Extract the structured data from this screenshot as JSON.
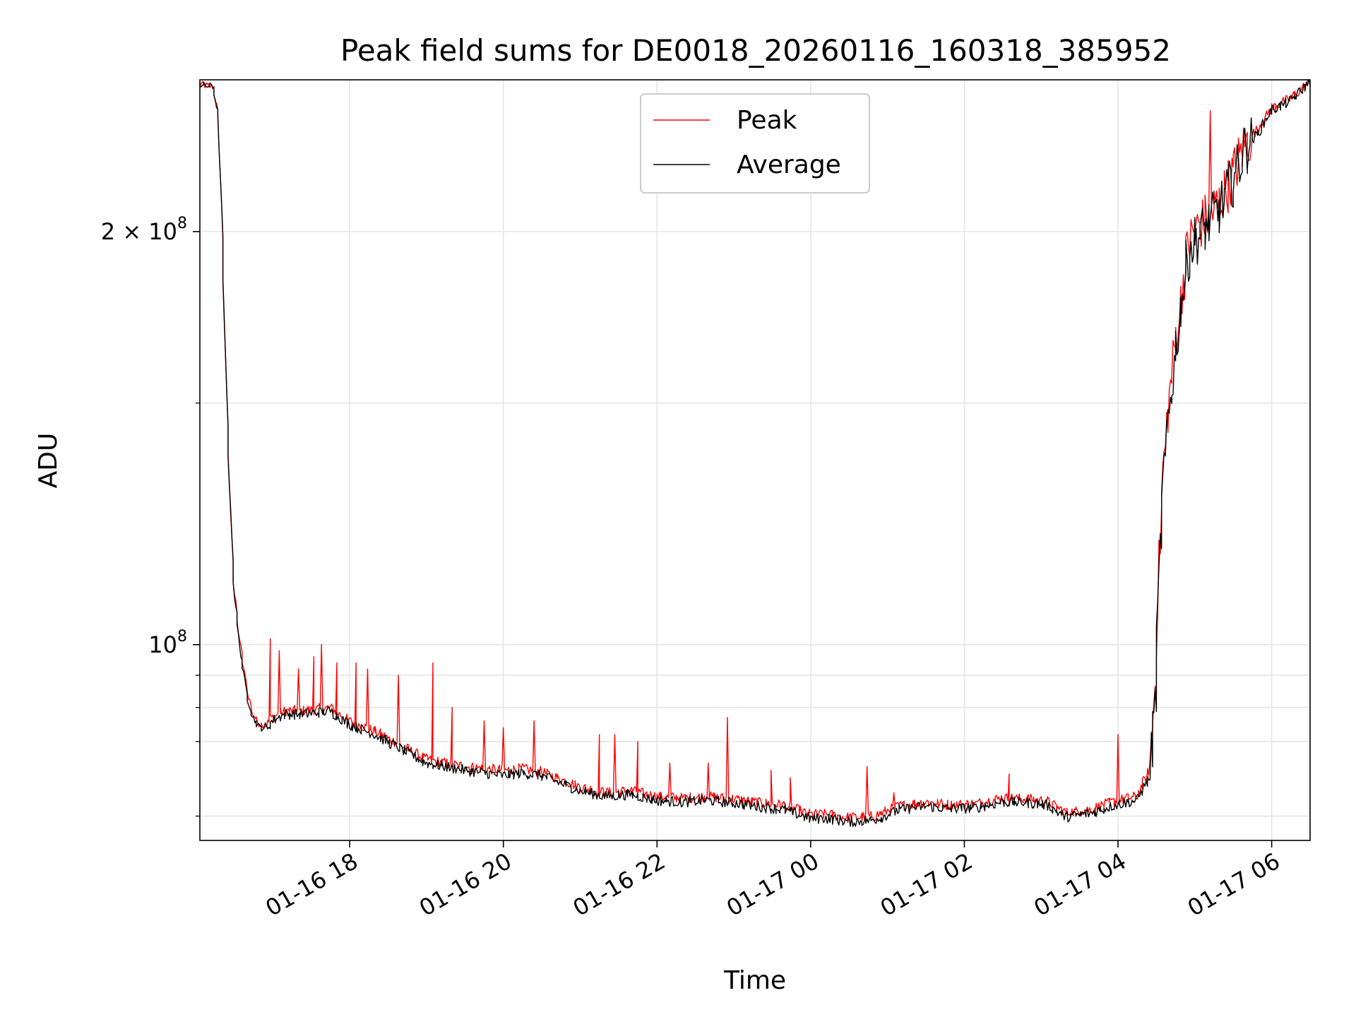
{
  "chart_data": {
    "type": "line",
    "title": "Peak field sums for DE0018_20260116_160318_385952",
    "xlabel": "Time",
    "ylabel": "ADU",
    "yscale": "log",
    "grid": true,
    "legend_position": "top-center",
    "xlim": [
      "2026-01-16 16:03",
      "2026-01-17 06:30"
    ],
    "ylim": [
      72000000,
      258000000
    ],
    "x_ticks": [
      {
        "value": "2026-01-16 18:00",
        "label": "01-16 18"
      },
      {
        "value": "2026-01-16 20:00",
        "label": "01-16 20"
      },
      {
        "value": "2026-01-16 22:00",
        "label": "01-16 22"
      },
      {
        "value": "2026-01-17 00:00",
        "label": "01-17 00"
      },
      {
        "value": "2026-01-17 02:00",
        "label": "01-17 02"
      },
      {
        "value": "2026-01-17 04:00",
        "label": "01-17 04"
      },
      {
        "value": "2026-01-17 06:00",
        "label": "01-17 06"
      }
    ],
    "y_major_ticks": [
      {
        "value": 100000000,
        "label": "10",
        "exp": "8",
        "prefix": ""
      },
      {
        "value": 200000000,
        "label": "2 × 10",
        "exp": "8",
        "prefix": ""
      }
    ],
    "y_minor_ticks": [
      75000000,
      85000000,
      90000000,
      95000000,
      150000000
    ],
    "series": [
      {
        "name": "Peak",
        "color": "#ff0000",
        "x": [
          "2026-01-16 16:03",
          "2026-01-16 16:14",
          "2026-01-16 16:18",
          "2026-01-16 16:21",
          "2026-01-16 16:24",
          "2026-01-16 16:27",
          "2026-01-16 16:30",
          "2026-01-16 16:35",
          "2026-01-16 16:40",
          "2026-01-16 16:45",
          "2026-01-16 16:50",
          "2026-01-16 16:56",
          "2026-01-16 17:00",
          "2026-01-16 17:10",
          "2026-01-16 17:25",
          "2026-01-16 17:45",
          "2026-01-16 18:00",
          "2026-01-16 18:20",
          "2026-01-16 18:40",
          "2026-01-16 19:00",
          "2026-01-16 19:30",
          "2026-01-16 20:00",
          "2026-01-16 20:15",
          "2026-01-16 20:30",
          "2026-01-16 20:45",
          "2026-01-16 21:00",
          "2026-01-16 21:20",
          "2026-01-16 21:40",
          "2026-01-16 22:00",
          "2026-01-16 22:20",
          "2026-01-16 22:40",
          "2026-01-16 23:00",
          "2026-01-16 23:20",
          "2026-01-16 23:40",
          "2026-01-17 00:00",
          "2026-01-17 00:15",
          "2026-01-17 00:30",
          "2026-01-17 00:50",
          "2026-01-17 01:10",
          "2026-01-17 01:30",
          "2026-01-17 01:50",
          "2026-01-17 02:10",
          "2026-01-17 02:30",
          "2026-01-17 02:50",
          "2026-01-17 03:05",
          "2026-01-17 03:20",
          "2026-01-17 03:40",
          "2026-01-17 04:00",
          "2026-01-17 04:15",
          "2026-01-17 04:25",
          "2026-01-17 04:30",
          "2026-01-17 04:33",
          "2026-01-17 04:36",
          "2026-01-17 04:40",
          "2026-01-17 04:45",
          "2026-01-17 04:50",
          "2026-01-17 04:55",
          "2026-01-17 05:00",
          "2026-01-17 05:10",
          "2026-01-17 05:20",
          "2026-01-17 05:30",
          "2026-01-17 05:40",
          "2026-01-17 05:50",
          "2026-01-17 06:00",
          "2026-01-17 06:15",
          "2026-01-17 06:30"
        ],
        "y": [
          256000000,
          255000000,
          242000000,
          200000000,
          155000000,
          128000000,
          110000000,
          100000000,
          93000000,
          89000000,
          87500000,
          87500000,
          88500000,
          89500000,
          89500000,
          90000000,
          88000000,
          86500000,
          84500000,
          82500000,
          81500000,
          81000000,
          81200000,
          80800000,
          79800000,
          78800000,
          78000000,
          78300000,
          77500000,
          77300000,
          77500000,
          77200000,
          76700000,
          76400000,
          75200000,
          75200000,
          74800000,
          75000000,
          76300000,
          76800000,
          76400000,
          76600000,
          77300000,
          77200000,
          76900000,
          75400000,
          75900000,
          77000000,
          77500000,
          81000000,
          95000000,
          118000000,
          135000000,
          150000000,
          165000000,
          180000000,
          195000000,
          200000000,
          205000000,
          210000000,
          220000000,
          232000000,
          238000000,
          246000000,
          250000000,
          257000000
        ],
        "spikes": [
          {
            "x": "2026-01-16 16:58",
            "y": 101000000
          },
          {
            "x": "2026-01-16 17:05",
            "y": 99000000
          },
          {
            "x": "2026-01-16 17:20",
            "y": 96000000
          },
          {
            "x": "2026-01-16 17:32",
            "y": 98000000
          },
          {
            "x": "2026-01-16 17:38",
            "y": 100000000
          },
          {
            "x": "2026-01-16 17:50",
            "y": 97000000
          },
          {
            "x": "2026-01-16 18:05",
            "y": 97000000
          },
          {
            "x": "2026-01-16 18:15",
            "y": 96000000
          },
          {
            "x": "2026-01-16 18:38",
            "y": 95000000
          },
          {
            "x": "2026-01-16 19:05",
            "y": 97000000
          },
          {
            "x": "2026-01-16 19:20",
            "y": 90000000
          },
          {
            "x": "2026-01-16 19:45",
            "y": 88000000
          },
          {
            "x": "2026-01-16 20:00",
            "y": 87000000
          },
          {
            "x": "2026-01-16 20:25",
            "y": 88000000
          },
          {
            "x": "2026-01-16 21:15",
            "y": 86000000
          },
          {
            "x": "2026-01-16 21:28",
            "y": 86000000
          },
          {
            "x": "2026-01-16 21:45",
            "y": 85000000
          },
          {
            "x": "2026-01-16 22:10",
            "y": 82000000
          },
          {
            "x": "2026-01-16 22:40",
            "y": 82000000
          },
          {
            "x": "2026-01-16 22:55",
            "y": 88500000
          },
          {
            "x": "2026-01-16 23:30",
            "y": 81000000
          },
          {
            "x": "2026-01-16 23:45",
            "y": 80000000
          },
          {
            "x": "2026-01-17 00:45",
            "y": 81500000
          },
          {
            "x": "2026-01-17 01:05",
            "y": 78000000
          },
          {
            "x": "2026-01-17 02:35",
            "y": 80500000
          },
          {
            "x": "2026-01-17 04:00",
            "y": 86000000
          },
          {
            "x": "2026-01-17 05:13",
            "y": 245000000
          }
        ]
      },
      {
        "name": "Average",
        "color": "#000000",
        "x": [
          "2026-01-16 16:03",
          "2026-01-16 16:14",
          "2026-01-16 16:18",
          "2026-01-16 16:21",
          "2026-01-16 16:24",
          "2026-01-16 16:27",
          "2026-01-16 16:30",
          "2026-01-16 16:35",
          "2026-01-16 16:40",
          "2026-01-16 16:45",
          "2026-01-16 16:50",
          "2026-01-16 16:56",
          "2026-01-16 17:00",
          "2026-01-16 17:10",
          "2026-01-16 17:25",
          "2026-01-16 17:45",
          "2026-01-16 18:00",
          "2026-01-16 18:20",
          "2026-01-16 18:40",
          "2026-01-16 19:00",
          "2026-01-16 19:30",
          "2026-01-16 20:00",
          "2026-01-16 20:15",
          "2026-01-16 20:30",
          "2026-01-16 20:45",
          "2026-01-16 21:00",
          "2026-01-16 21:20",
          "2026-01-16 21:40",
          "2026-01-16 22:00",
          "2026-01-16 22:20",
          "2026-01-16 22:40",
          "2026-01-16 23:00",
          "2026-01-16 23:20",
          "2026-01-16 23:40",
          "2026-01-17 00:00",
          "2026-01-17 00:15",
          "2026-01-17 00:30",
          "2026-01-17 00:50",
          "2026-01-17 01:10",
          "2026-01-17 01:30",
          "2026-01-17 01:50",
          "2026-01-17 02:10",
          "2026-01-17 02:30",
          "2026-01-17 02:50",
          "2026-01-17 03:05",
          "2026-01-17 03:20",
          "2026-01-17 03:40",
          "2026-01-17 04:00",
          "2026-01-17 04:15",
          "2026-01-17 04:25",
          "2026-01-17 04:30",
          "2026-01-17 04:33",
          "2026-01-17 04:36",
          "2026-01-17 04:40",
          "2026-01-17 04:45",
          "2026-01-17 04:50",
          "2026-01-17 04:55",
          "2026-01-17 05:00",
          "2026-01-17 05:10",
          "2026-01-17 05:20",
          "2026-01-17 05:30",
          "2026-01-17 05:40",
          "2026-01-17 05:50",
          "2026-01-17 06:00",
          "2026-01-17 06:15",
          "2026-01-17 06:30"
        ],
        "y": [
          256000000,
          255000000,
          242000000,
          200000000,
          155000000,
          128000000,
          110000000,
          99000000,
          92000000,
          88500000,
          87000000,
          87000000,
          88000000,
          89000000,
          89000000,
          89500000,
          87500000,
          86000000,
          84000000,
          82000000,
          81000000,
          80300000,
          80600000,
          80300000,
          79300000,
          78300000,
          77500000,
          77800000,
          77000000,
          76800000,
          77000000,
          76700000,
          76200000,
          75800000,
          74700000,
          74700000,
          74300000,
          74500000,
          75800000,
          76300000,
          75900000,
          76100000,
          76800000,
          76700000,
          76400000,
          74900000,
          75400000,
          76500000,
          77000000,
          80000000,
          92000000,
          115000000,
          132000000,
          147000000,
          162000000,
          178000000,
          192000000,
          197000000,
          202000000,
          208000000,
          218000000,
          230000000,
          236000000,
          245000000,
          249000000,
          257000000
        ]
      }
    ]
  }
}
